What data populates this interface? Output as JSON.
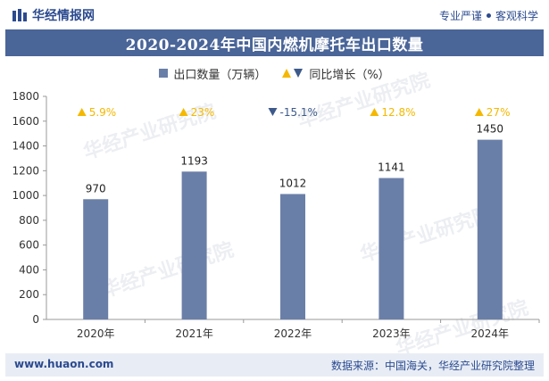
{
  "header": {
    "brand": "华经情报网",
    "slogan_left": "专业严谨",
    "slogan_right": "客观科学"
  },
  "title": "2020-2024年中国内燃机摩托车出口数量",
  "legend": {
    "series1": "出口数量（万辆）",
    "series2": "同比增长（%）"
  },
  "watermark": "华经产业研究院",
  "footer": {
    "website": "www.huaon.com",
    "source": "数据来源：中国海关，华经产业研究院整理"
  },
  "colors": {
    "bar": "#6a7fa8",
    "up": "#f5b800",
    "down": "#3d5a8a",
    "title_bg": "#4a6598"
  },
  "chart_data": {
    "type": "bar",
    "categories": [
      "2020年",
      "2021年",
      "2022年",
      "2023年",
      "2024年"
    ],
    "series": [
      {
        "name": "出口数量（万辆）",
        "values": [
          970,
          1193,
          1012,
          1141,
          1450
        ]
      },
      {
        "name": "同比增长（%）",
        "values": [
          5.9,
          23,
          -15.1,
          12.8,
          27
        ]
      }
    ],
    "growth_labels": [
      "5.9%",
      "23%",
      "-15.1%",
      "12.8%",
      "27%"
    ],
    "ylim": [
      0,
      1800
    ],
    "yticks": [
      0,
      200,
      400,
      600,
      800,
      1000,
      1200,
      1400,
      1600,
      1800
    ],
    "grid": false,
    "legend_position": "top"
  }
}
